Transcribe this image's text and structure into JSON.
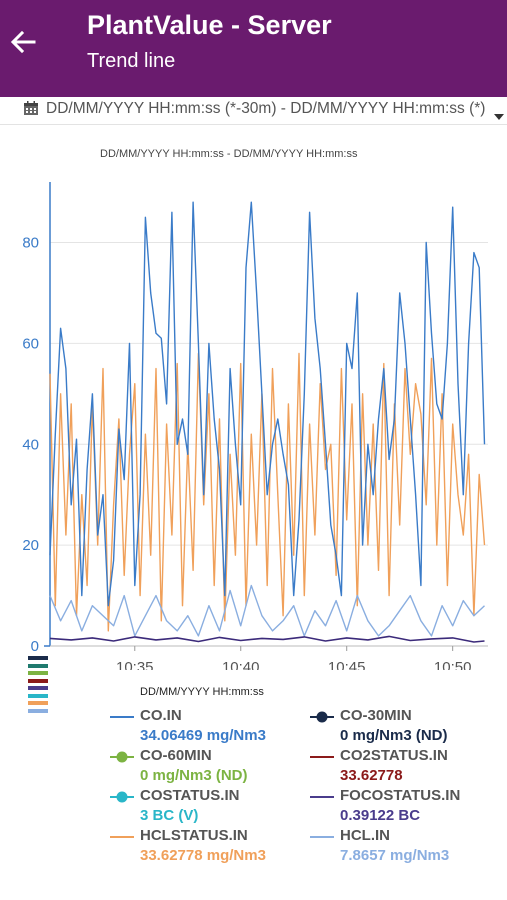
{
  "app": {
    "title": "PlantValue - Server",
    "subtitle": "Trend line"
  },
  "range_bar": {
    "text": "DD/MM/YYYY HH:mm:ss (*-30m) - DD/MM/YYYY HH:mm:ss (*)",
    "calendar_icon": "calendar-icon",
    "dropdown_icon": "dropdown-triangle-icon"
  },
  "chart_data": {
    "type": "line",
    "title": "DD/MM/YYYY HH:mm:ss - DD/MM/YYYY HH:mm:ss",
    "xlabel": "DD/MM/YYYY HH:mm:ss",
    "ylabel": "",
    "ylim": [
      0,
      92
    ],
    "yticks": [
      0,
      20,
      40,
      60,
      80
    ],
    "xlim": [
      "10:31",
      "10:51:40"
    ],
    "xticks": [
      "10:35",
      "10:40",
      "10:45",
      "10:50"
    ],
    "grid": true,
    "series": [
      {
        "name": "CO.IN",
        "color": "#3a7bc8",
        "x": [
          0,
          0.25,
          0.5,
          0.75,
          1,
          1.25,
          1.5,
          1.75,
          2,
          2.25,
          2.5,
          2.75,
          3,
          3.25,
          3.5,
          3.75,
          4,
          4.25,
          4.5,
          4.75,
          5,
          5.25,
          5.5,
          5.75,
          6,
          6.25,
          6.5,
          6.75,
          7,
          7.25,
          7.5,
          7.75,
          8,
          8.25,
          8.5,
          8.75,
          9,
          9.25,
          9.5,
          9.75,
          10,
          10.25,
          10.5,
          10.75,
          11,
          11.25,
          11.5,
          11.75,
          12,
          12.25,
          12.5,
          12.75,
          13,
          13.25,
          13.5,
          13.75,
          14,
          14.25,
          14.5,
          14.75,
          15,
          15.25,
          15.5,
          15.75,
          16,
          16.25,
          16.5,
          16.75,
          17,
          17.25,
          17.5,
          17.75,
          18,
          18.25,
          18.5,
          18.75,
          19,
          19.25,
          19.5,
          19.75,
          20,
          20.25,
          20.5
        ],
        "values": [
          18,
          42,
          63,
          55,
          28,
          41,
          10,
          35,
          50,
          22,
          30,
          8,
          17,
          43,
          33,
          60,
          12,
          30,
          85,
          70,
          62,
          61,
          48,
          86,
          40,
          45,
          38,
          88,
          60,
          30,
          60,
          45,
          35,
          10,
          55,
          40,
          28,
          75,
          88,
          70,
          50,
          30,
          40,
          45,
          38,
          32,
          10,
          25,
          50,
          86,
          65,
          55,
          40,
          24,
          18,
          10,
          60,
          55,
          70,
          20,
          40,
          30,
          45,
          55,
          37,
          45,
          70,
          60,
          45,
          30,
          12,
          80,
          62,
          48,
          45,
          60,
          87,
          52,
          30,
          60,
          78,
          75,
          40
        ]
      },
      {
        "name": "HCLSTATUS.IN",
        "color": "#f0a05a",
        "x": [
          0,
          0.25,
          0.5,
          0.75,
          1,
          1.25,
          1.5,
          1.75,
          2,
          2.25,
          2.5,
          2.75,
          3,
          3.25,
          3.5,
          3.75,
          4,
          4.25,
          4.5,
          4.75,
          5,
          5.25,
          5.5,
          5.75,
          6,
          6.25,
          6.5,
          6.75,
          7,
          7.25,
          7.5,
          7.75,
          8,
          8.25,
          8.5,
          8.75,
          9,
          9.25,
          9.5,
          9.75,
          10,
          10.25,
          10.5,
          10.75,
          11,
          11.25,
          11.5,
          11.75,
          12,
          12.25,
          12.5,
          12.75,
          13,
          13.25,
          13.5,
          13.75,
          14,
          14.25,
          14.5,
          14.75,
          15,
          15.25,
          15.5,
          15.75,
          16,
          16.25,
          16.5,
          16.75,
          17,
          17.25,
          17.5,
          17.75,
          18,
          18.25,
          18.5,
          18.75,
          19,
          19.25,
          19.5,
          19.75,
          20,
          20.25,
          20.5
        ],
        "values": [
          54,
          8,
          50,
          22,
          48,
          6,
          30,
          12,
          48,
          20,
          55,
          3,
          28,
          45,
          14,
          38,
          52,
          10,
          42,
          18,
          55,
          5,
          44,
          22,
          56,
          8,
          40,
          15,
          58,
          28,
          50,
          12,
          45,
          5,
          38,
          18,
          56,
          8,
          42,
          20,
          50,
          12,
          55,
          30,
          6,
          48,
          18,
          58,
          10,
          44,
          22,
          52,
          35,
          40,
          14,
          55,
          25,
          48,
          8,
          50,
          20,
          44,
          15,
          56,
          10,
          48,
          24,
          55,
          38,
          52,
          46,
          28,
          57,
          20,
          50,
          12,
          44,
          30,
          22,
          38,
          6,
          34,
          20
        ]
      },
      {
        "name": "HCL.IN",
        "color": "#8aaee0",
        "x": [
          0,
          0.5,
          1,
          1.5,
          2,
          2.5,
          3,
          3.5,
          4,
          4.5,
          5,
          5.5,
          6,
          6.5,
          7,
          7.5,
          8,
          8.5,
          9,
          9.5,
          10,
          10.5,
          11,
          11.5,
          12,
          12.5,
          13,
          13.5,
          14,
          14.5,
          15,
          15.5,
          16,
          16.5,
          17,
          17.5,
          18,
          18.5,
          19,
          19.5,
          20,
          20.5
        ],
        "values": [
          10,
          5,
          9,
          3,
          8,
          6,
          4,
          10,
          2,
          6,
          10,
          5,
          3,
          6,
          2,
          8,
          3,
          11,
          4,
          12,
          6,
          3,
          5,
          8,
          2,
          7,
          4,
          9,
          3,
          10,
          5,
          2,
          4,
          7,
          10,
          5,
          2,
          8,
          4,
          9,
          6,
          8
        ]
      },
      {
        "name": "FOCOSTATUS.IN",
        "color": "#3b2a7a",
        "x": [
          0,
          1,
          2,
          3,
          4,
          5,
          6,
          7,
          8,
          9,
          10,
          11,
          12,
          13,
          14,
          15,
          16,
          17,
          18,
          19,
          20,
          20.5
        ],
        "values": [
          1.5,
          1.2,
          1.6,
          1.0,
          1.8,
          1.2,
          1.6,
          0.9,
          1.7,
          1.1,
          1.5,
          1.3,
          1.8,
          1.0,
          1.6,
          1.2,
          1.9,
          1.1,
          1.4,
          1.6,
          0.8,
          1.0
        ]
      }
    ]
  },
  "legend_swatch_colors": [
    "#1a2b4a",
    "#1f7a6e",
    "#7cb342",
    "#8b1a1a",
    "#4a3c8c",
    "#29b6c8",
    "#f0a05a",
    "#8aaee0"
  ],
  "legend": [
    {
      "name": "CO.IN",
      "value": "34.06469 mg/Nm3",
      "color": "#3a7bc8",
      "marker": "line"
    },
    {
      "name": "CO-30MIN",
      "value": "0 mg/Nm3 (ND)",
      "color": "#1a2b4a",
      "marker": "dot-line"
    },
    {
      "name": "CO-60MIN",
      "value": "0 mg/Nm3 (ND)",
      "color": "#7cb342",
      "marker": "dot-line"
    },
    {
      "name": "CO2STATUS.IN",
      "value": "33.62778",
      "color": "#8b1a1a",
      "marker": "line"
    },
    {
      "name": "COSTATUS.IN",
      "value": "3 BC (V)",
      "color": "#29b6c8",
      "marker": "dot-line"
    },
    {
      "name": "FOCOSTATUS.IN",
      "value": "0.39122 BC",
      "color": "#4a3c8c",
      "marker": "line"
    },
    {
      "name": "HCLSTATUS.IN",
      "value": "33.62778 mg/Nm3",
      "color": "#f0a05a",
      "marker": "line"
    },
    {
      "name": "HCL.IN",
      "value": "7.8657 mg/Nm3",
      "color": "#8aaee0",
      "marker": "line"
    }
  ]
}
